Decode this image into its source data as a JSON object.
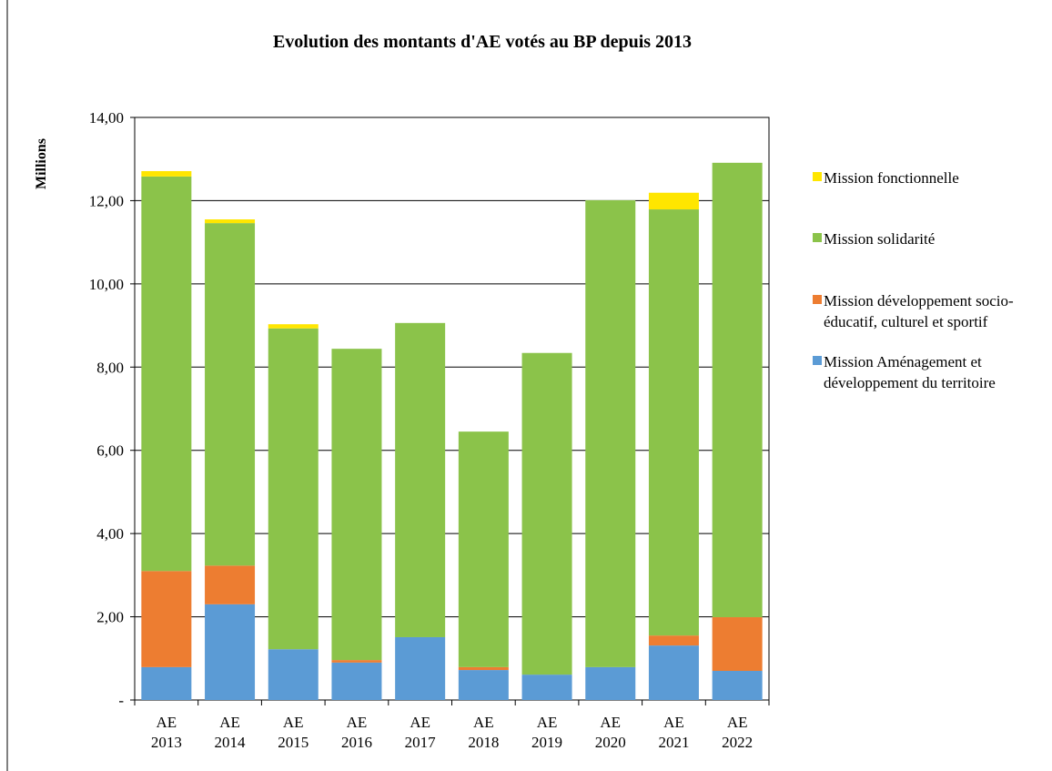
{
  "chart_data": {
    "type": "stacked_bar",
    "title": "Evolution des montants d'AE votés au BP depuis 2013",
    "y_label": "Millions",
    "categories": [
      "AE\n2013",
      "AE\n2014",
      "AE\n2015",
      "AE\n2016",
      "AE\n2017",
      "AE\n2018",
      "AE\n2019",
      "AE\n2020",
      "AE\n2021",
      "AE\n2022"
    ],
    "series": [
      {
        "name": "Mission Aménagement et développement du territoire",
        "color": "#5b9bd5",
        "values": [
          0.79,
          2.3,
          1.22,
          0.9,
          1.51,
          0.72,
          0.61,
          0.79,
          1.31,
          0.7
        ]
      },
      {
        "name": "Mission développement socio-éducatif, culturel et sportif",
        "color": "#ed7d31",
        "values": [
          2.31,
          0.93,
          0,
          0.06,
          0,
          0.07,
          0,
          0,
          0.24,
          1.29
        ]
      },
      {
        "name": "Mission solidarité",
        "color": "#8bc34a",
        "values": [
          9.48,
          8.23,
          7.71,
          7.48,
          7.55,
          5.66,
          7.73,
          11.22,
          10.24,
          10.92
        ]
      },
      {
        "name": "Mission fonctionnelle",
        "color": "#ffe600",
        "values": [
          0.13,
          0.09,
          0.1,
          0,
          0,
          0,
          0,
          0,
          0.4,
          0
        ]
      }
    ],
    "ylim": [
      0,
      14
    ],
    "yticks": [
      {
        "value": 0,
        "label": "-"
      },
      {
        "value": 2,
        "label": "2,00"
      },
      {
        "value": 4,
        "label": "4,00"
      },
      {
        "value": 6,
        "label": "6,00"
      },
      {
        "value": 8,
        "label": "8,00"
      },
      {
        "value": 10,
        "label": "10,00"
      },
      {
        "value": 12,
        "label": "12,00"
      },
      {
        "value": 14,
        "label": "14,00"
      }
    ],
    "grid": true
  }
}
